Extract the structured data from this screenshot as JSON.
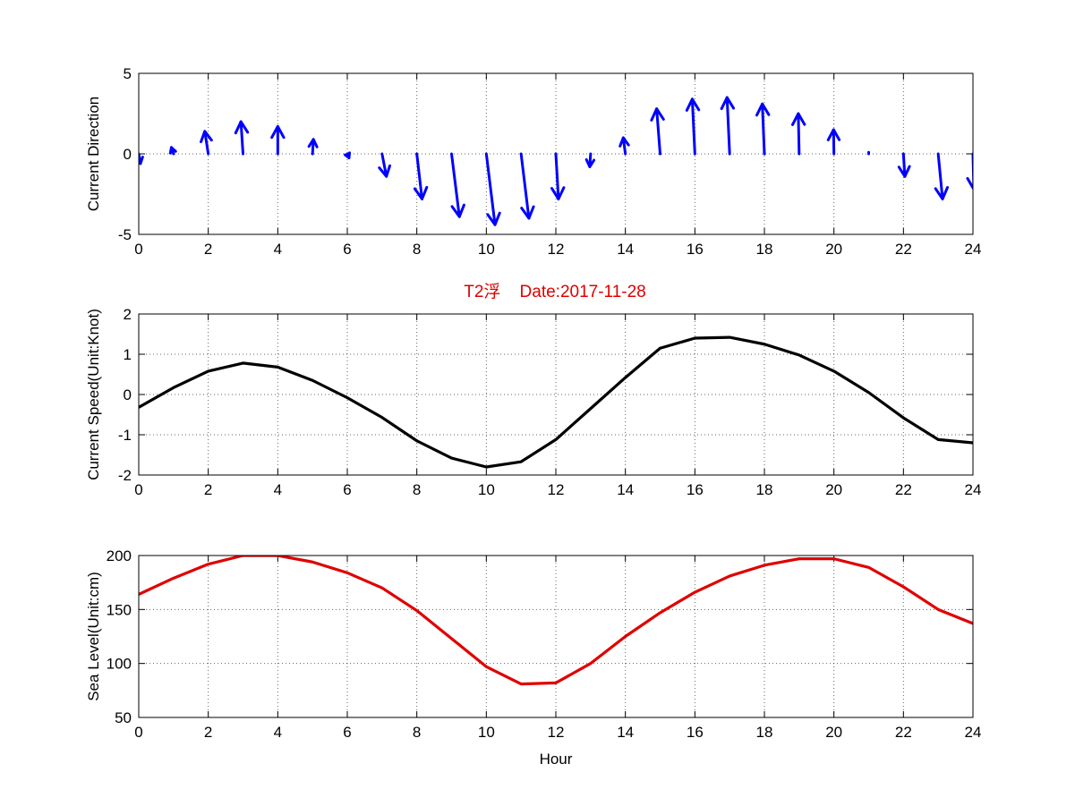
{
  "figure": {
    "title": "T2浮    Date:2017-11-28",
    "title_color": "#e00000",
    "background": "#ffffff"
  },
  "chart_data": [
    {
      "type": "quiver",
      "xlabel": "",
      "ylabel": "Current Direction",
      "xlim": [
        0,
        24
      ],
      "ylim": [
        -5,
        5
      ],
      "xticks": [
        "0",
        "2",
        "4",
        "6",
        "8",
        "10",
        "12",
        "14",
        "16",
        "18",
        "20",
        "22",
        "24"
      ],
      "yticks": [
        "-5",
        "0",
        "5"
      ],
      "grid": true,
      "color": "#0000ff",
      "arrows": [
        {
          "x": 0,
          "u": 0.1,
          "v": -0.6
        },
        {
          "x": 1,
          "u": -0.12,
          "v": 0.4
        },
        {
          "x": 2,
          "u": -0.2,
          "v": 1.4
        },
        {
          "x": 3,
          "u": -0.12,
          "v": 2.0
        },
        {
          "x": 4,
          "u": 0.0,
          "v": 1.7
        },
        {
          "x": 5,
          "u": 0.05,
          "v": 0.9
        },
        {
          "x": 6,
          "u": 0.1,
          "v": -0.25
        },
        {
          "x": 7,
          "u": 0.25,
          "v": -1.4
        },
        {
          "x": 8,
          "u": 0.3,
          "v": -2.8
        },
        {
          "x": 9,
          "u": 0.45,
          "v": -3.9
        },
        {
          "x": 10,
          "u": 0.5,
          "v": -4.4
        },
        {
          "x": 11,
          "u": 0.45,
          "v": -4.0
        },
        {
          "x": 12,
          "u": 0.15,
          "v": -2.8
        },
        {
          "x": 13,
          "u": -0.05,
          "v": -0.8
        },
        {
          "x": 14,
          "u": -0.12,
          "v": 1.0
        },
        {
          "x": 15,
          "u": -0.2,
          "v": 2.8
        },
        {
          "x": 16,
          "u": -0.15,
          "v": 3.4
        },
        {
          "x": 17,
          "u": -0.15,
          "v": 3.5
        },
        {
          "x": 18,
          "u": -0.12,
          "v": 3.1
        },
        {
          "x": 19,
          "u": -0.05,
          "v": 2.5
        },
        {
          "x": 20,
          "u": -0.02,
          "v": 1.5
        },
        {
          "x": 21,
          "u": 0.0,
          "v": 0.1
        },
        {
          "x": 22,
          "u": 0.08,
          "v": -1.4
        },
        {
          "x": 23,
          "u": 0.25,
          "v": -2.8
        },
        {
          "x": 24,
          "u": 0.05,
          "v": -2.2
        }
      ]
    },
    {
      "type": "line",
      "title": "T2浮    Date:2017-11-28",
      "xlabel": "",
      "ylabel": "Current Speed(Unit:Knot)",
      "xlim": [
        0,
        24
      ],
      "ylim": [
        -2,
        2
      ],
      "xticks": [
        "0",
        "2",
        "4",
        "6",
        "8",
        "10",
        "12",
        "14",
        "16",
        "18",
        "20",
        "22",
        "24"
      ],
      "yticks": [
        "-2",
        "-1",
        "0",
        "1",
        "2"
      ],
      "grid": true,
      "series": [
        {
          "color": "#000000",
          "x": [
            0,
            1,
            2,
            3,
            4,
            5,
            6,
            7,
            8,
            9,
            10,
            11,
            12,
            13,
            14,
            15,
            16,
            17,
            18,
            19,
            20,
            21,
            22,
            23,
            24
          ],
          "values": [
            -0.32,
            0.17,
            0.58,
            0.78,
            0.68,
            0.35,
            -0.08,
            -0.57,
            -1.15,
            -1.58,
            -1.8,
            -1.67,
            -1.12,
            -0.35,
            0.42,
            1.15,
            1.4,
            1.42,
            1.25,
            0.98,
            0.58,
            0.05,
            -0.58,
            -1.12,
            -1.2
          ]
        }
      ]
    },
    {
      "type": "line",
      "xlabel": "Hour",
      "ylabel": "Sea Level(Unit:cm)",
      "xlim": [
        0,
        24
      ],
      "ylim": [
        50,
        200
      ],
      "xticks": [
        "0",
        "2",
        "4",
        "6",
        "8",
        "10",
        "12",
        "14",
        "16",
        "18",
        "20",
        "22",
        "24"
      ],
      "yticks": [
        "50",
        "100",
        "150",
        "200"
      ],
      "grid": true,
      "series": [
        {
          "color": "#e00000",
          "x": [
            0,
            1,
            2,
            3,
            4,
            5,
            6,
            7,
            8,
            9,
            10,
            11,
            12,
            13,
            14,
            15,
            16,
            17,
            18,
            19,
            20,
            21,
            22,
            23,
            24
          ],
          "values": [
            164,
            179,
            192,
            200,
            200,
            194,
            184,
            170,
            149,
            123,
            97,
            81,
            82,
            100,
            125,
            147,
            166,
            181,
            191,
            197,
            197,
            189,
            171,
            150,
            137
          ]
        }
      ]
    }
  ]
}
